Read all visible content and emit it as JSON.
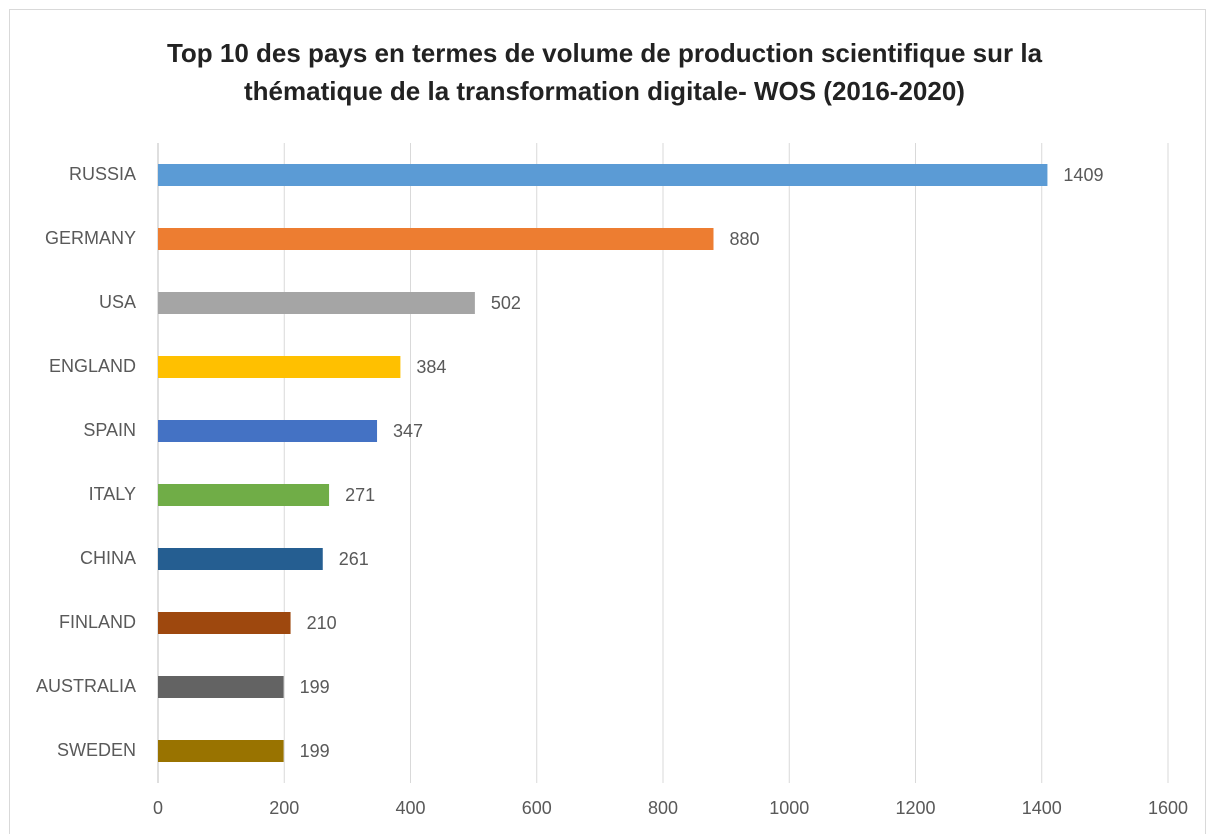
{
  "chart_data": {
    "type": "bar",
    "orientation": "horizontal",
    "title": "Top 10 des pays en termes de volume de production scientifique sur la thématique de la transformation digitale- WOS (2016-2020)",
    "categories": [
      "RUSSIA",
      "GERMANY",
      "USA",
      "ENGLAND",
      "SPAIN",
      "ITALY",
      "CHINA",
      "FINLAND",
      "AUSTRALIA",
      "SWEDEN"
    ],
    "values": [
      1409,
      880,
      502,
      384,
      347,
      271,
      261,
      210,
      199,
      199
    ],
    "colors": [
      "#5b9bd5",
      "#ed7d31",
      "#a5a5a5",
      "#ffc000",
      "#4472c4",
      "#70ad47",
      "#255e91",
      "#9e480e",
      "#636363",
      "#997300"
    ],
    "xlim": [
      0,
      1600
    ],
    "xticks": [
      0,
      200,
      400,
      600,
      800,
      1000,
      1200,
      1400,
      1600
    ],
    "grid": true
  }
}
